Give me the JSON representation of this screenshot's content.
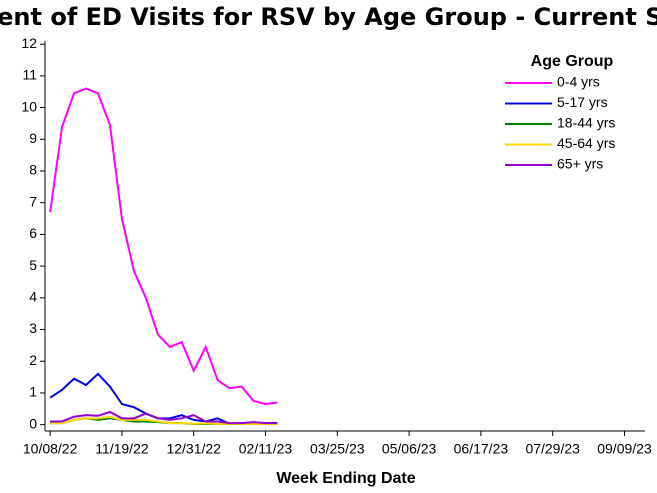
{
  "chart_data": {
    "type": "line",
    "title": "Percent of ED Visits for RSV by Age Group - Current Season",
    "x_label": "Week Ending Date",
    "legend_title": "Age Group",
    "legend": "top-right",
    "x": [
      "10/08/22",
      "10/15/22",
      "10/22/22",
      "10/29/22",
      "11/05/22",
      "11/12/22",
      "11/19/22",
      "11/26/22",
      "12/03/22",
      "12/10/22",
      "12/17/22",
      "12/24/22",
      "12/31/22",
      "01/07/23",
      "01/14/23",
      "01/21/23",
      "01/28/23",
      "02/04/23",
      "02/11/23",
      "02/18/23"
    ],
    "xlim": [
      "10/05/22",
      "09/21/23"
    ],
    "xticks": [
      "10/08/22",
      "11/19/22",
      "12/31/22",
      "02/11/23",
      "03/25/23",
      "05/06/23",
      "06/17/23",
      "07/29/23",
      "09/09/23"
    ],
    "ylim": [
      -0.2,
      12.1
    ],
    "yticks": [
      0,
      1,
      2,
      3,
      4,
      5,
      6,
      7,
      8,
      9,
      10,
      11,
      12
    ],
    "series": [
      {
        "name": "0-4 yrs",
        "color": "#ff00ff",
        "values": [
          6.7,
          9.4,
          10.45,
          10.6,
          10.45,
          9.45,
          6.5,
          4.85,
          4.0,
          2.85,
          2.45,
          2.6,
          1.7,
          2.45,
          1.4,
          1.15,
          1.2,
          0.75,
          0.65,
          0.7
        ]
      },
      {
        "name": "5-17 yrs",
        "color": "#0000dd",
        "values": [
          0.85,
          1.1,
          1.45,
          1.25,
          1.6,
          1.2,
          0.65,
          0.55,
          0.35,
          0.2,
          0.2,
          0.3,
          0.15,
          0.1,
          0.2,
          0.02,
          0.05,
          0.05,
          0.05,
          0.05
        ]
      },
      {
        "name": "18-44 yrs",
        "color": "#008000",
        "values": [
          0.05,
          0.05,
          0.15,
          0.2,
          0.15,
          0.2,
          0.15,
          0.1,
          0.1,
          0.08,
          0.05,
          0.05,
          0.02,
          0.03,
          0.02,
          0.02,
          0.02,
          0.02,
          0.02,
          0.02
        ]
      },
      {
        "name": "45-64 yrs",
        "color": "#ffd700",
        "values": [
          0.05,
          0.05,
          0.15,
          0.2,
          0.2,
          0.25,
          0.15,
          0.15,
          0.15,
          0.1,
          0.05,
          0.05,
          0.03,
          0.05,
          0.02,
          0.03,
          0.02,
          0.02,
          0.02,
          0.02
        ]
      },
      {
        "name": "65+ yrs",
        "color": "#9400d3",
        "values": [
          0.1,
          0.1,
          0.25,
          0.3,
          0.28,
          0.4,
          0.2,
          0.2,
          0.35,
          0.2,
          0.15,
          0.2,
          0.3,
          0.1,
          0.1,
          0.05,
          0.05,
          0.08,
          0.05,
          0.05
        ]
      }
    ]
  }
}
